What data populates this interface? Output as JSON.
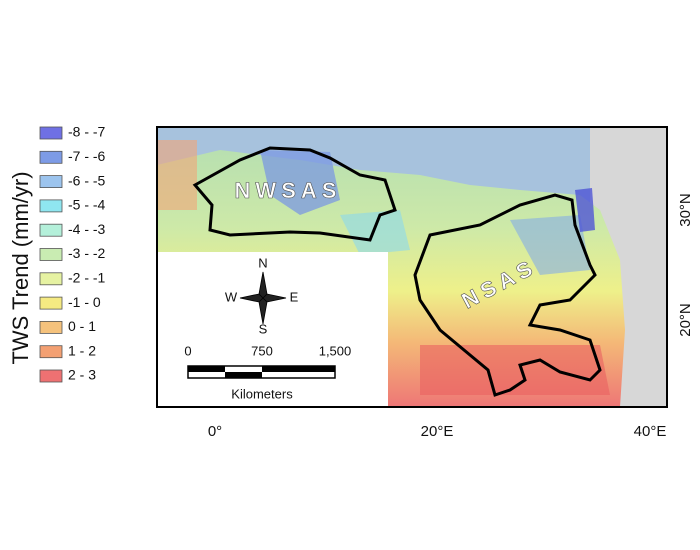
{
  "legend": {
    "title": "TWS Trend (mm/yr)",
    "items": [
      {
        "label": "-8 - -7",
        "color": "#6f70e4"
      },
      {
        "label": "-7 - -6",
        "color": "#7d9be6"
      },
      {
        "label": "-6 - -5",
        "color": "#9cc4ee"
      },
      {
        "label": "-5 - -4",
        "color": "#8fe6f0"
      },
      {
        "label": "-4 - -3",
        "color": "#b4f0da"
      },
      {
        "label": "-3 - -2",
        "color": "#c9ecb2"
      },
      {
        "label": "-2 - -1",
        "color": "#e6f2a2"
      },
      {
        "label": "-1 - 0",
        "color": "#f5ea82"
      },
      {
        "label": "0 - 1",
        "color": "#f5c27c"
      },
      {
        "label": "1 - 2",
        "color": "#f3a072"
      },
      {
        "label": "2 - 3",
        "color": "#ee7172"
      }
    ]
  },
  "map": {
    "labels": [
      "NWSAS",
      "NSAS"
    ],
    "compass": {
      "n": "N",
      "w": "W",
      "e": "E",
      "s": "S"
    },
    "scale_bar": {
      "ticks": [
        "0",
        "750",
        "1,500"
      ],
      "unit": "Kilometers"
    },
    "x_axis_labels": [
      "0°",
      "20°E",
      "40°E"
    ],
    "y_axis_labels": [
      "30°N",
      "20°N"
    ]
  }
}
